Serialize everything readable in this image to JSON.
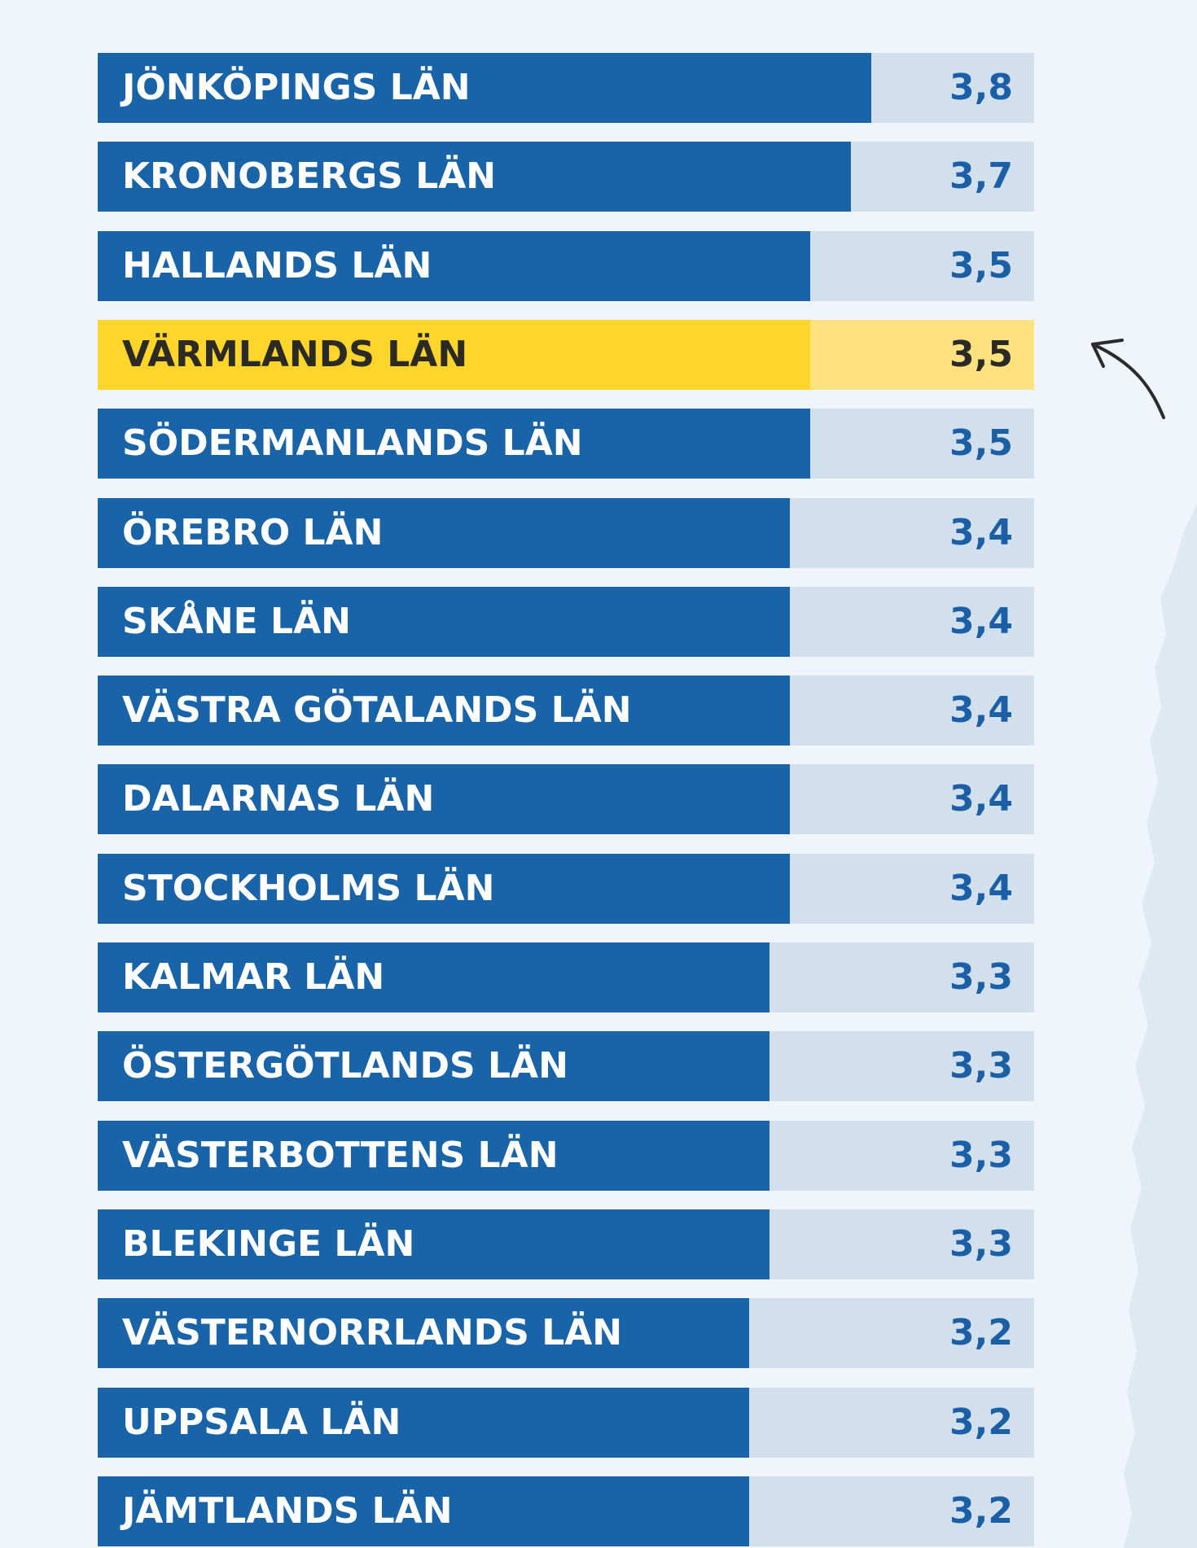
{
  "chart_data": {
    "type": "bar",
    "orientation": "horizontal",
    "title": "",
    "xlabel": "",
    "ylabel": "",
    "xlim": [
      0,
      4.6
    ],
    "categories": [
      "JÖNKÖPINGS LÄN",
      "KRONOBERGS LÄN",
      "HALLANDS LÄN",
      "VÄRMLANDS LÄN",
      "SÖDERMANLANDS LÄN",
      "ÖREBRO LÄN",
      "SKÅNE LÄN",
      "VÄSTRA GÖTALANDS LÄN",
      "DALARNAS LÄN",
      "STOCKHOLMS LÄN",
      "KALMAR LÄN",
      "ÖSTERGÖTLANDS LÄN",
      "VÄSTERBOTTENS LÄN",
      "BLEKINGE LÄN",
      "VÄSTERNORRLANDS LÄN",
      "UPPSALA LÄN",
      "JÄMTLANDS LÄN"
    ],
    "values": [
      3.8,
      3.7,
      3.5,
      3.5,
      3.5,
      3.4,
      3.4,
      3.4,
      3.4,
      3.4,
      3.3,
      3.3,
      3.3,
      3.3,
      3.2,
      3.2,
      3.2
    ],
    "value_labels": [
      "3,8",
      "3,7",
      "3,5",
      "3,5",
      "3,5",
      "3,4",
      "3,4",
      "3,4",
      "3,4",
      "3,4",
      "3,3",
      "3,3",
      "3,3",
      "3,3",
      "3,2",
      "3,2",
      "3,2"
    ],
    "highlight": "VÄRMLANDS LÄN"
  },
  "colors": {
    "bar": "#1963a9",
    "track": "#d2e0ed",
    "highlight_bar": "#fdd52b",
    "highlight_track": "#ffe280",
    "value_text": "#1b5fa6",
    "highlight_text": "#2c2a24",
    "background": "#eff5fa",
    "map": "#dfe9f2"
  },
  "icons": {
    "pointer": "curved-arrow-icon",
    "decoration": "map-shape"
  }
}
